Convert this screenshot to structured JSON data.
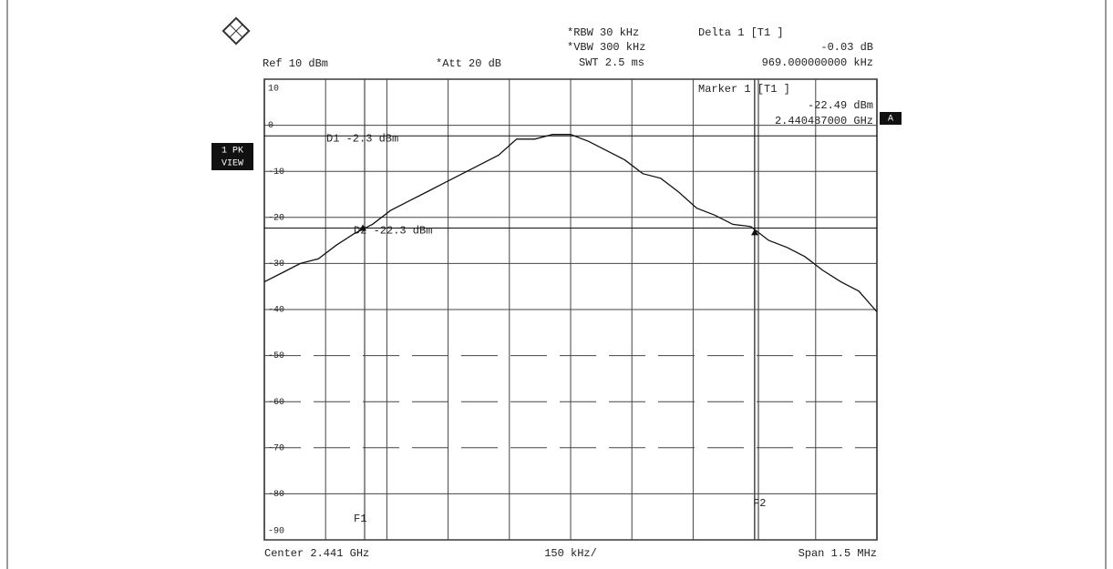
{
  "chart_data": {
    "type": "line",
    "settings": {
      "rbw": "*RBW 30 kHz",
      "vbw": "*VBW 300 kHz",
      "swt": "SWT 2.5 ms",
      "ref": "Ref 10 dBm",
      "att": "*Att 20 dB"
    },
    "delta": {
      "title": "Delta 1 [T1 ]",
      "level": "-0.03 dB",
      "freq": "969.000000000 kHz"
    },
    "marker": {
      "title": "Marker 1 [T1 ]",
      "level": "-22.49 dBm",
      "freq": "2.440487000 GHz"
    },
    "side_labels": [
      "1 PK",
      "VIEW"
    ],
    "badge": "A",
    "display_lines": [
      {
        "label": "D1 -2.3 dBm",
        "value": -2.3
      },
      {
        "label": "D2 -22.3 dBm",
        "value": -22.3
      }
    ],
    "freq_lines": [
      "F1",
      "F2"
    ],
    "x_labels": {
      "center": "Center 2.441 GHz",
      "div": "150 kHz/",
      "span": "Span 1.5 MHz"
    },
    "ylim": [
      -90,
      10
    ],
    "yticks": [
      10,
      0,
      -10,
      -20,
      -30,
      -40,
      -50,
      -60,
      -70,
      -80,
      -90
    ],
    "color": "#111111",
    "values": [
      -34,
      -32,
      -30,
      -29,
      -26,
      -23.5,
      -21.5,
      -18.5,
      -16.5,
      -14.5,
      -12.5,
      -10.5,
      -8.5,
      -6.5,
      -3,
      -3,
      -2,
      -2,
      -3.5,
      -5.5,
      -7.5,
      -10.5,
      -11.5,
      -14.5,
      -18,
      -19.5,
      -21.5,
      -22,
      -25,
      -26.5,
      -28.5,
      -31.5,
      -34,
      -36,
      -40.5
    ]
  }
}
